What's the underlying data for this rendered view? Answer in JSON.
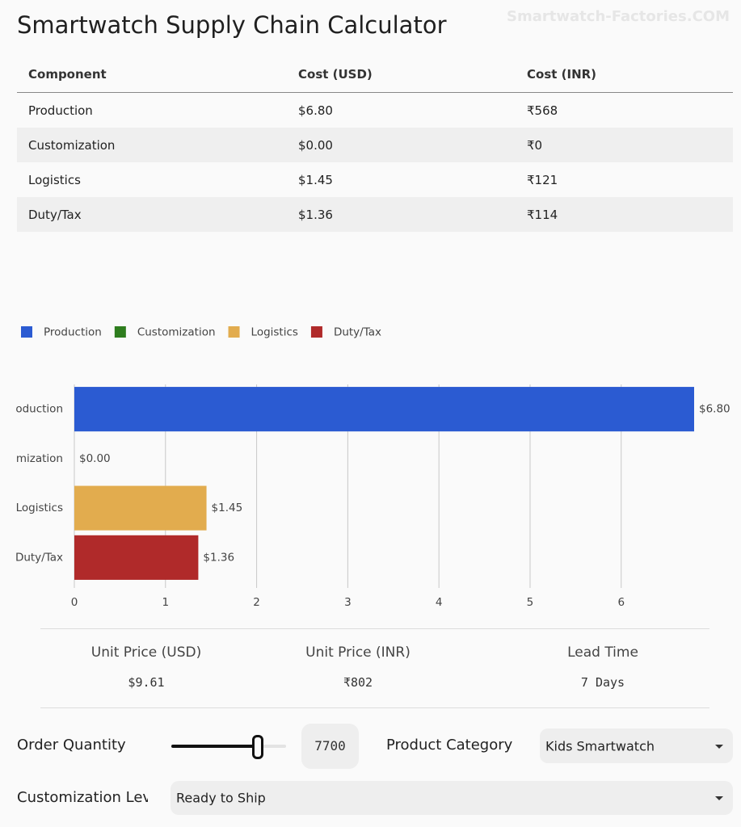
{
  "header": {
    "title": "Smartwatch Supply Chain Calculator",
    "watermark": "Smartwatch-Factories.COM"
  },
  "table": {
    "columns": [
      "Component",
      "Cost (USD)",
      "Cost (INR)"
    ],
    "rows": [
      [
        "Production",
        "$6.80",
        "₹568"
      ],
      [
        "Customization",
        "$0.00",
        "₹0"
      ],
      [
        "Logistics",
        "$1.45",
        "₹121"
      ],
      [
        "Duty/Tax",
        "$1.36",
        "₹114"
      ]
    ]
  },
  "chart_data": {
    "type": "hbar",
    "categories": [
      "Production",
      "Customization",
      "Logistics",
      "Duty/Tax"
    ],
    "values": [
      6.8,
      0.0,
      1.45,
      1.36
    ],
    "value_labels": [
      "$6.80",
      "$0.00",
      "$1.45",
      "$1.36"
    ],
    "colors": [
      "#2b5bd2",
      "#2e7d1e",
      "#e2ac4e",
      "#b02a2a"
    ],
    "xlim": [
      0,
      6.8
    ],
    "xticks": [
      0,
      1,
      2,
      3,
      4,
      5,
      6
    ],
    "grid": true,
    "legend": "top-left"
  },
  "summary": [
    {
      "label": "Unit Price (USD)",
      "value": "$9.61"
    },
    {
      "label": "Unit Price (INR)",
      "value": "₹802"
    },
    {
      "label": "Lead Time",
      "value": "7 Days"
    }
  ],
  "controls": {
    "order_quantity": {
      "label": "Order Quantity",
      "value": "7700"
    },
    "product_category": {
      "label": "Product Category",
      "value": "Kids Smartwatch"
    },
    "customization_level": {
      "label": "Customization Level",
      "value": "Ready to Ship"
    }
  }
}
